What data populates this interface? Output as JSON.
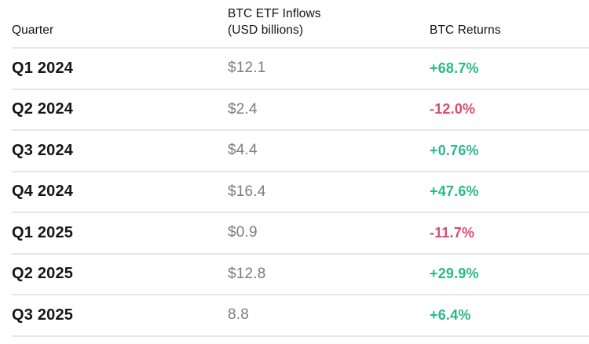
{
  "table": {
    "columns": [
      {
        "label": "Quarter"
      },
      {
        "label": "BTC ETF Inflows",
        "sublabel": "(USD billions)"
      },
      {
        "label": "BTC Returns"
      }
    ],
    "rows": [
      {
        "quarter": "Q1 2024",
        "inflow": "$12.1",
        "return": "+68.7%",
        "direction": "positive"
      },
      {
        "quarter": "Q2 2024",
        "inflow": "$2.4",
        "return": "-12.0%",
        "direction": "negative"
      },
      {
        "quarter": "Q3 2024",
        "inflow": "$4.4",
        "return": "+0.76%",
        "direction": "positive"
      },
      {
        "quarter": "Q4 2024",
        "inflow": "$16.4",
        "return": "+47.6%",
        "direction": "positive"
      },
      {
        "quarter": "Q1 2025",
        "inflow": "$0.9",
        "return": "-11.7%",
        "direction": "negative"
      },
      {
        "quarter": "Q2 2025",
        "inflow": "$12.8",
        "return": "+29.9%",
        "direction": "positive"
      },
      {
        "quarter": "Q3 2025",
        "inflow": "8.8",
        "return": "+6.4%",
        "direction": "positive"
      }
    ],
    "colors": {
      "positive": "#29b98a",
      "negative": "#de4a6b",
      "divider": "#e6e6e6",
      "value_gray": "#7d7d7d",
      "text_dark": "#161616"
    }
  },
  "chart_data": {
    "type": "table",
    "title": "",
    "columns": [
      "Quarter",
      "BTC ETF Inflows (USD billions)",
      "BTC Returns"
    ],
    "rows": [
      [
        "Q1 2024",
        "$12.1",
        "+68.7%"
      ],
      [
        "Q2 2024",
        "$2.4",
        "-12.0%"
      ],
      [
        "Q3 2024",
        "$4.4",
        "+0.76%"
      ],
      [
        "Q4 2024",
        "$16.4",
        "+47.6%"
      ],
      [
        "Q1 2025",
        "$0.9",
        "-11.7%"
      ],
      [
        "Q2 2025",
        "$12.8",
        "+29.9%"
      ],
      [
        "Q3 2025",
        "8.8",
        "+6.4%"
      ]
    ],
    "inflows_usd_billions": [
      12.1,
      2.4,
      4.4,
      16.4,
      0.9,
      12.8,
      8.8
    ],
    "btc_returns_percent": [
      68.7,
      -12.0,
      0.76,
      47.6,
      -11.7,
      29.9,
      6.4
    ],
    "positive_color": "#29b98a",
    "negative_color": "#de4a6b"
  }
}
